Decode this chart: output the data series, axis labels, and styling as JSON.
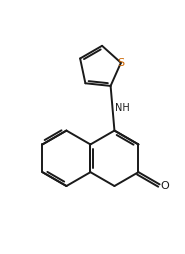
{
  "background": "#ffffff",
  "line_color": "#1a1a1a",
  "line_width": 1.4,
  "S_color": "#cc6600",
  "O_color": "#1a1a1a",
  "NH_color": "#1a1a1a",
  "figsize": [
    1.85,
    2.54
  ],
  "dpi": 100,
  "xlim": [
    0,
    185
  ],
  "ylim": [
    0,
    254
  ]
}
